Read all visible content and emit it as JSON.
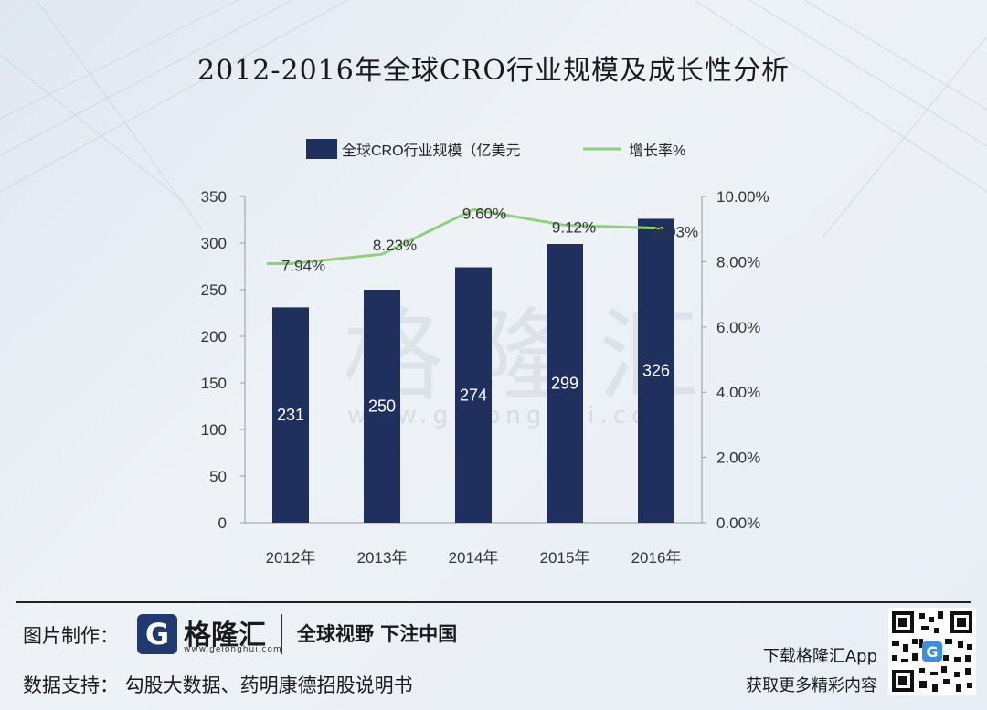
{
  "title": "2012-2016年全球CRO行业规模及成长性分析",
  "watermark": {
    "text": "格隆汇",
    "url": "www.gelonghui.com"
  },
  "chart_data": {
    "type": "bar",
    "categories": [
      "2012年",
      "2013年",
      "2014年",
      "2015年",
      "2016年"
    ],
    "series": [
      {
        "name": "全球CRO行业规模（亿美元",
        "type": "bar",
        "axis": "left",
        "values": [
          231,
          250,
          274,
          299,
          326
        ],
        "labels": [
          "231",
          "250",
          "274",
          "299",
          "326"
        ],
        "color": "#1f2f5e"
      },
      {
        "name": "增长率%",
        "type": "line",
        "axis": "right",
        "values": [
          7.94,
          8.23,
          9.6,
          9.12,
          9.03
        ],
        "labels": [
          "7.94%",
          "8.23%",
          "9.60%",
          "9.12%",
          "9.03%"
        ],
        "color": "#8fd07a"
      }
    ],
    "y_left": {
      "min": 0,
      "max": 350,
      "ticks": [
        "0",
        "50",
        "100",
        "150",
        "200",
        "250",
        "300",
        "350"
      ]
    },
    "y_right": {
      "min": 0,
      "max": 10,
      "ticks": [
        "0.00%",
        "2.00%",
        "4.00%",
        "6.00%",
        "8.00%",
        "10.00%"
      ]
    },
    "legend_position": "top"
  },
  "footer": {
    "made_label": "图片制作：",
    "logo_letter": "G",
    "logo_name": "格隆汇",
    "logo_url": "www.gelonghui.com",
    "slogan": "全球视野 下注中国",
    "data_support": "数据支持：  勾股大数据、药明康德招股说明书",
    "app_line1": "下载格隆汇App",
    "app_line2": "获取更多精彩内容",
    "qr_badge": "G"
  }
}
